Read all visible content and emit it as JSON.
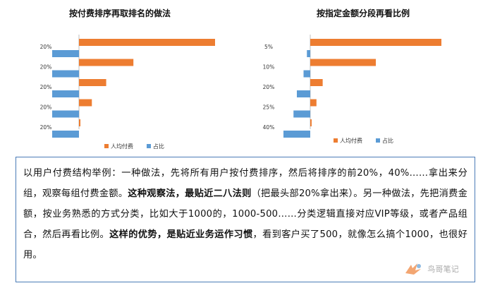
{
  "chart_data": [
    {
      "type": "bar",
      "orientation": "horizontal",
      "title": "按付费排序再取排名的做法",
      "categories": [
        "20%",
        "20%",
        "20%",
        "20%",
        "20%"
      ],
      "series": [
        {
          "name": "人均付费",
          "color": "#ED7D31",
          "values": [
            190,
            76,
            38,
            18,
            2
          ]
        },
        {
          "name": "占比",
          "color": "#5B9BD5",
          "values": [
            -20,
            -20,
            -20,
            -20,
            -20
          ]
        }
      ],
      "legend": "bottom",
      "grid": false
    },
    {
      "type": "bar",
      "orientation": "horizontal",
      "title": "按指定金额分段再看比例",
      "categories": [
        "5%",
        "10%",
        "20%",
        "25%",
        "40%"
      ],
      "series": [
        {
          "name": "人均付费",
          "color": "#ED7D31",
          "values": [
            190,
            95,
            18,
            9,
            2
          ]
        },
        {
          "name": "占比",
          "color": "#5B9BD5",
          "values": [
            -5,
            -10,
            -20,
            -25,
            -40
          ]
        }
      ],
      "legend": "bottom",
      "grid": false
    }
  ],
  "text": {
    "p1": "以用户付费结构举例：一种做法，先将所有用户按付费排序，然后将排序的前20%，40%……拿出来分组，观察每组付费金额。",
    "p1_bold": "这种观察法，最贴近二八法则",
    "p2": "（把最头部20%拿出来）。另一种做法，先把消费金额，按业务熟悉的方式分类，比如大于1000的，1000-500……分类逻辑直接对应VIP等级，或者产品组合，然后再看比例。",
    "p2_bold": "这样的优势，是贴近业务运作习惯",
    "p3": "，看到客户买了500，就像怎么搞个1000，也很好用。"
  },
  "watermark": {
    "brand": "鸟哥笔记",
    "colors": {
      "orange": "#ED7D31",
      "blue": "#5B9BD5",
      "gray": "#9a9a9a"
    }
  }
}
